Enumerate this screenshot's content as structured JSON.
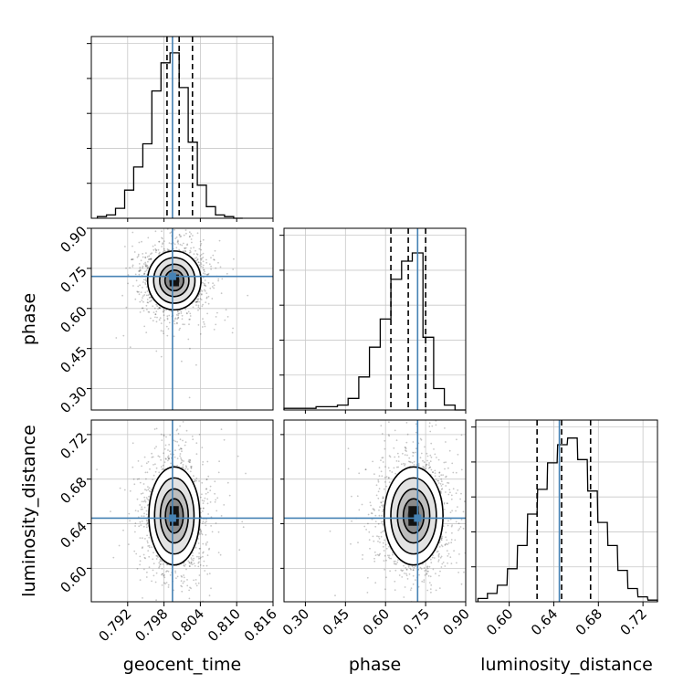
{
  "chart_data": {
    "type": "corner",
    "parameters": [
      {
        "name": "geocent_time",
        "axis_label": "geocent_time",
        "range": [
          0.786,
          0.816
        ],
        "ticks": [
          0.792,
          0.798,
          0.804,
          0.81,
          0.816
        ],
        "tick_labels": [
          "0.792",
          "0.798",
          "0.804",
          "0.810",
          "0.816"
        ],
        "truth": 0.7994,
        "quantiles": [
          0.7985,
          0.8005,
          0.8027
        ],
        "hist_bins": [
          0.787,
          0.7885,
          0.79,
          0.7915,
          0.793,
          0.7945,
          0.796,
          0.7975,
          0.799,
          0.8005,
          0.802,
          0.8035,
          0.805,
          0.8065,
          0.808,
          0.8095
        ],
        "hist_counts": [
          0.01,
          0.02,
          0.06,
          0.17,
          0.31,
          0.45,
          0.77,
          0.94,
          1.0,
          0.79,
          0.46,
          0.2,
          0.07,
          0.02,
          0.01,
          0.0
        ]
      },
      {
        "name": "phase",
        "axis_label": "phase",
        "range": [
          0.22,
          0.9
        ],
        "ticks": [
          0.3,
          0.45,
          0.6,
          0.75,
          0.9
        ],
        "tick_labels": [
          "0.30",
          "0.45",
          "0.60",
          "0.75",
          "0.90"
        ],
        "truth": 0.72,
        "quantiles": [
          0.62,
          0.685,
          0.75
        ],
        "hist_bins": [
          0.22,
          0.26,
          0.3,
          0.34,
          0.38,
          0.42,
          0.46,
          0.5,
          0.54,
          0.58,
          0.62,
          0.66,
          0.7,
          0.74,
          0.78,
          0.82,
          0.86
        ],
        "hist_counts": [
          0.01,
          0.01,
          0.01,
          0.02,
          0.02,
          0.03,
          0.07,
          0.2,
          0.38,
          0.55,
          0.79,
          0.9,
          0.95,
          0.44,
          0.13,
          0.03,
          0.0
        ]
      },
      {
        "name": "luminosity_distance",
        "axis_label": "luminosity_distance",
        "range": [
          0.57,
          0.733
        ],
        "ticks": [
          0.6,
          0.64,
          0.68,
          0.72
        ],
        "tick_labels": [
          "0.60",
          "0.64",
          "0.68",
          "0.72"
        ],
        "truth": 0.645,
        "quantiles": [
          0.625,
          0.647,
          0.673
        ],
        "hist_bins": [
          0.572,
          0.5805,
          0.5895,
          0.5985,
          0.6075,
          0.6165,
          0.6255,
          0.6345,
          0.6435,
          0.6525,
          0.6615,
          0.6705,
          0.6795,
          0.6885,
          0.6975,
          0.7065,
          0.7155,
          0.7245
        ],
        "hist_counts": [
          0.02,
          0.05,
          0.1,
          0.2,
          0.34,
          0.53,
          0.68,
          0.84,
          0.95,
          0.99,
          0.86,
          0.67,
          0.48,
          0.34,
          0.19,
          0.08,
          0.03,
          0.01
        ]
      }
    ],
    "pairs": [
      {
        "x": "geocent_time",
        "y": "phase",
        "center": [
          0.7997,
          0.705
        ],
        "sigma": [
          0.0022,
          0.055
        ]
      },
      {
        "x": "geocent_time",
        "y": "luminosity_distance",
        "center": [
          0.7997,
          0.647
        ],
        "sigma": [
          0.0021,
          0.022
        ]
      },
      {
        "x": "phase",
        "y": "luminosity_distance",
        "center": [
          0.705,
          0.647
        ],
        "sigma": [
          0.055,
          0.022
        ]
      }
    ],
    "truth_color": "#4682b4",
    "quantile_style": "dashed",
    "grid": true
  }
}
